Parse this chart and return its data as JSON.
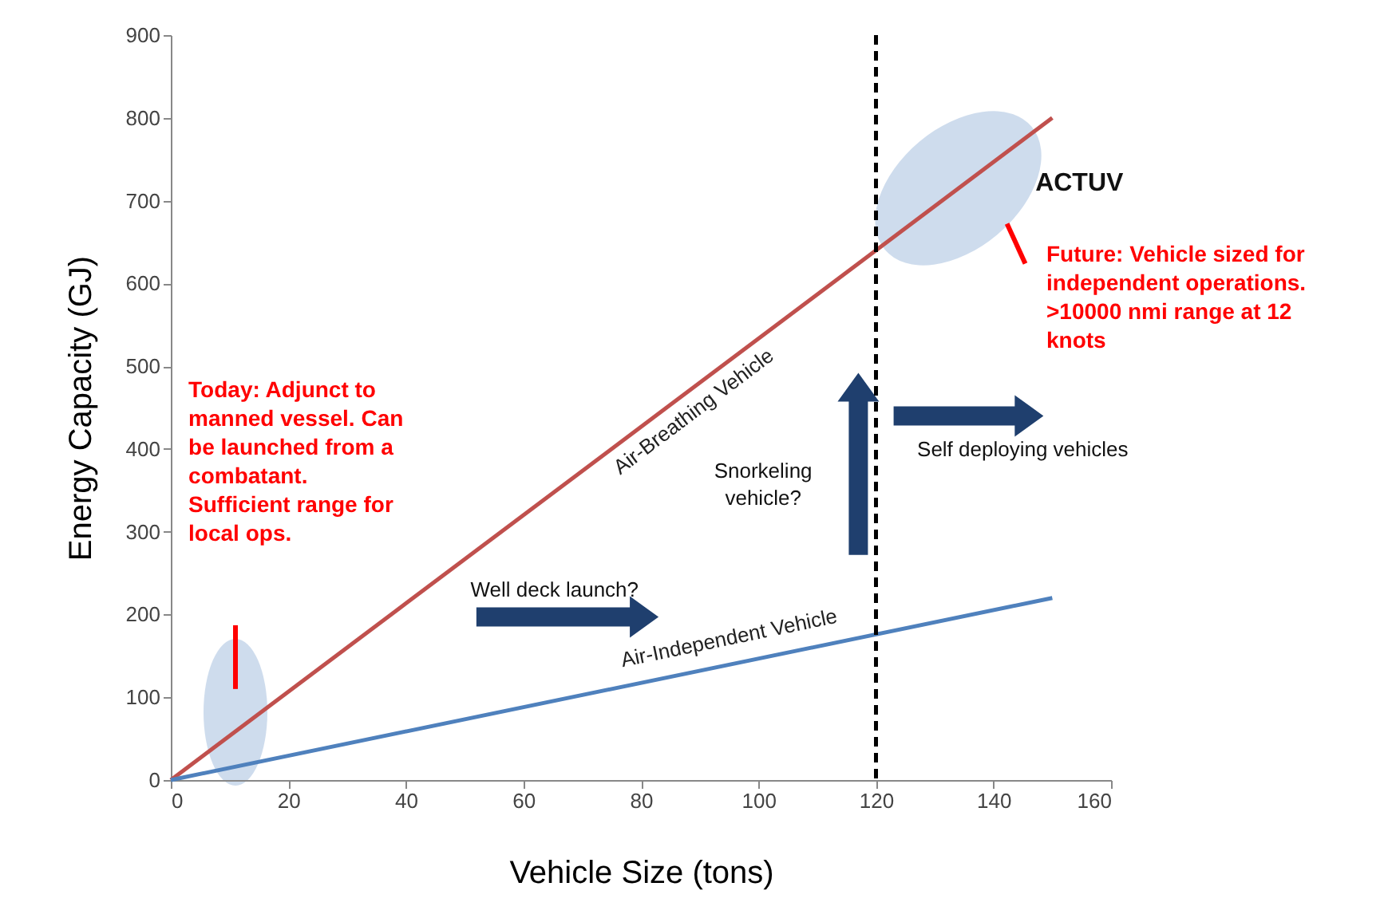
{
  "chart_data": {
    "type": "line",
    "xlabel": "Vehicle Size (tons)",
    "ylabel": "Energy Capacity (GJ)",
    "x": [
      0,
      150
    ],
    "series": [
      {
        "name": "Air-Breathing Vehicle",
        "color": "#c0504d",
        "values": [
          0,
          800
        ]
      },
      {
        "name": "Air-Independent Vehicle",
        "color": "#4f81bd",
        "values": [
          0,
          220
        ]
      }
    ],
    "xlim": [
      0,
      160
    ],
    "xticks": [
      0,
      20,
      40,
      60,
      80,
      100,
      120,
      140,
      160
    ],
    "ylim": [
      0,
      900
    ],
    "yticks": [
      0,
      100,
      200,
      300,
      400,
      500,
      600,
      700,
      800,
      900
    ],
    "ref_lines": [
      {
        "axis": "x",
        "value": 120,
        "color": "#000000",
        "line_style": "dashed"
      }
    ],
    "annotations": [
      "Today:  Adjunct to\nmanned vessel.  Can\nbe launched from a\ncombatant.\nSufficient range for\nlocal ops.",
      "Future: Vehicle sized for\nindependent operations.\n>10000 nmi  range at 12\nknots",
      "ACTUV",
      "Well deck launch?",
      "Snorkeling\nvehicle?",
      "Self deploying vehicles"
    ],
    "grid": false,
    "legend": false,
    "marker": "none",
    "line_style": "solid"
  }
}
